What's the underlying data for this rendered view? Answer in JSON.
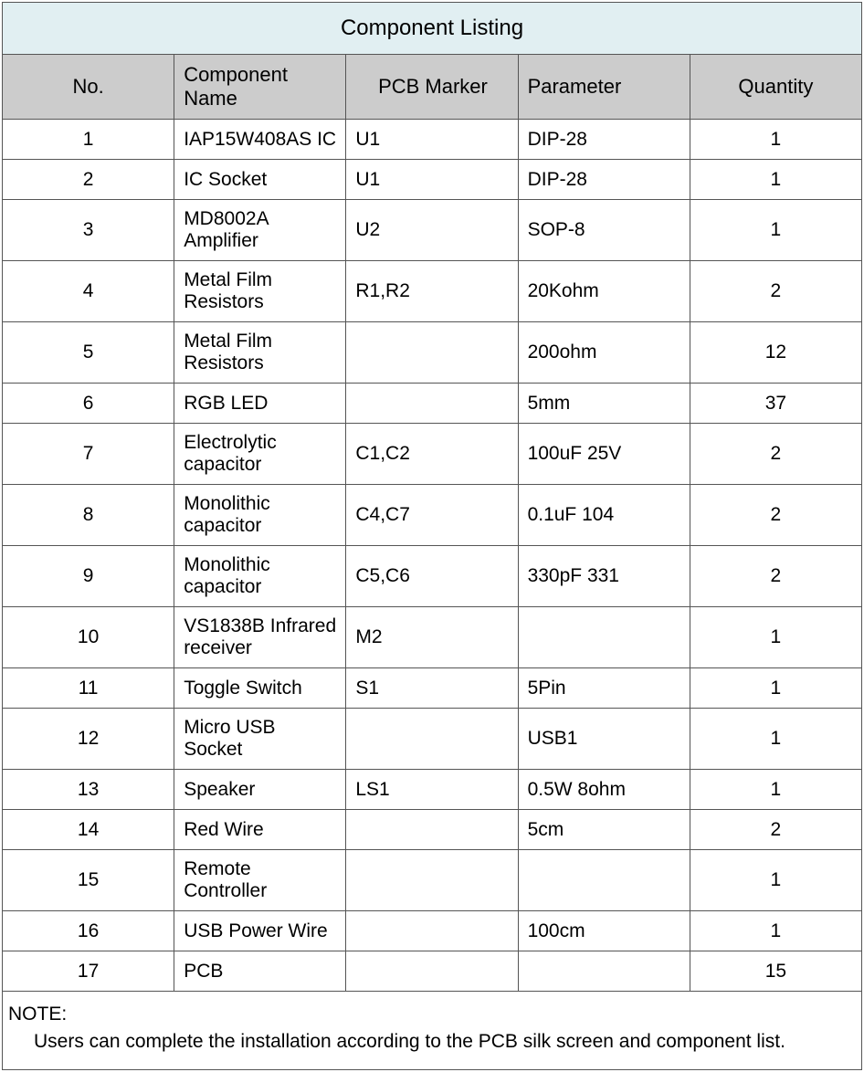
{
  "title": "Component Listing",
  "columns": {
    "no": "No.",
    "name": "Component Name",
    "marker": "PCB Marker",
    "param": "Parameter",
    "qty": "Quantity"
  },
  "widths": {
    "no": 76,
    "name": 306,
    "marker": 186,
    "param": 208,
    "qty": 166
  },
  "alignments": {
    "no": "center",
    "name": "left",
    "marker": "left",
    "param": "left",
    "qty": "center"
  },
  "colors": {
    "title_bg": "#e1eff2",
    "header_bg": "#cccccc",
    "border": "#555555",
    "text": "#000000",
    "body_bg": "#ffffff"
  },
  "typography": {
    "title_fontsize": 24,
    "header_fontsize": 22,
    "cell_fontsize": 21,
    "note_fontsize": 21,
    "font_family": "Segoe UI"
  },
  "rows": [
    {
      "no": "1",
      "name": "IAP15W408AS IC",
      "marker": "U1",
      "param": "DIP-28",
      "qty": "1"
    },
    {
      "no": "2",
      "name": "IC Socket",
      "marker": "U1",
      "param": "DIP-28",
      "qty": "1"
    },
    {
      "no": "3",
      "name": "MD8002A Amplifier",
      "marker": "U2",
      "param": "SOP-8",
      "qty": "1"
    },
    {
      "no": "4",
      "name": "Metal Film Resistors",
      "marker": "R1,R2",
      "param": "20Kohm",
      "qty": "2"
    },
    {
      "no": "5",
      "name": "Metal Film Resistors",
      "marker": "",
      "param": "200ohm",
      "qty": "12"
    },
    {
      "no": "6",
      "name": "RGB LED",
      "marker": "",
      "param": "5mm",
      "qty": "37"
    },
    {
      "no": "7",
      "name": "Electrolytic capacitor",
      "marker": "C1,C2",
      "param": "100uF 25V",
      "qty": "2"
    },
    {
      "no": "8",
      "name": "Monolithic capacitor",
      "marker": "C4,C7",
      "param": "0.1uF 104",
      "qty": "2"
    },
    {
      "no": "9",
      "name": "Monolithic capacitor",
      "marker": "C5,C6",
      "param": "330pF 331",
      "qty": "2"
    },
    {
      "no": "10",
      "name": "VS1838B Infrared receiver",
      "marker": "M2",
      "param": "",
      "qty": "1"
    },
    {
      "no": "11",
      "name": "Toggle Switch",
      "marker": "S1",
      "param": "5Pin",
      "qty": "1"
    },
    {
      "no": "12",
      "name": "Micro USB Socket",
      "marker": "",
      "param": "USB1",
      "qty": "1"
    },
    {
      "no": "13",
      "name": "Speaker",
      "marker": "LS1",
      "param": "0.5W 8ohm",
      "qty": "1"
    },
    {
      "no": "14",
      "name": "Red Wire",
      "marker": "",
      "param": "5cm",
      "qty": "2"
    },
    {
      "no": "15",
      "name": "Remote Controller",
      "marker": "",
      "param": "",
      "qty": "1"
    },
    {
      "no": "16",
      "name": "USB Power Wire",
      "marker": "",
      "param": "100cm",
      "qty": "1"
    },
    {
      "no": "17",
      "name": "PCB",
      "marker": "",
      "param": "",
      "qty": "15"
    }
  ],
  "note": {
    "label": "NOTE:",
    "text": "Users can complete the installation according to the PCB silk screen and component list."
  }
}
